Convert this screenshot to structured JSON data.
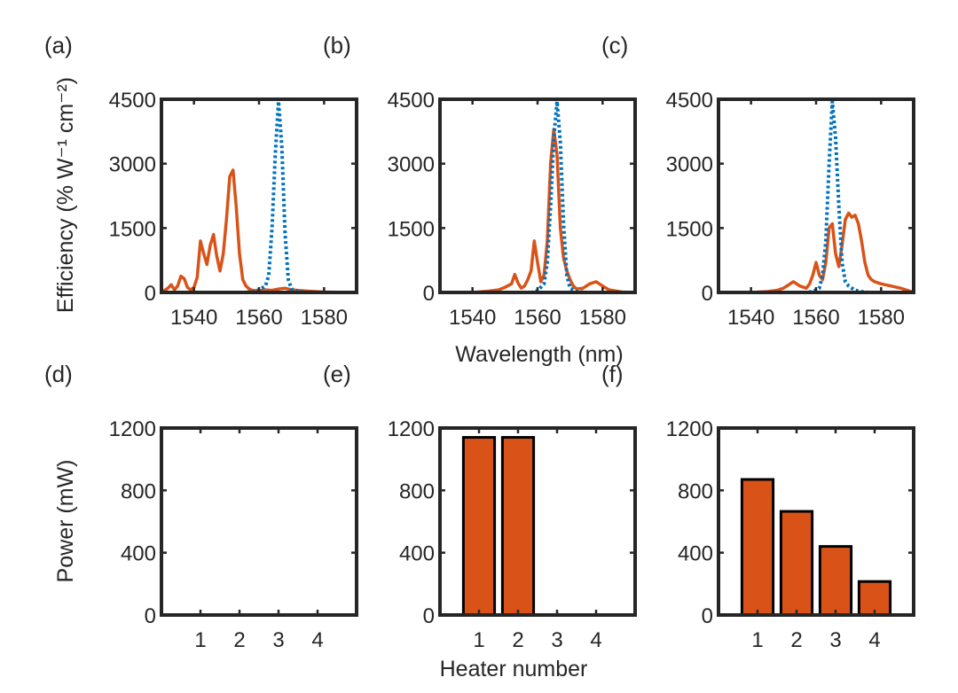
{
  "figure": {
    "top_ylabel": "Efficiency (% W⁻¹ cm⁻²)",
    "top_xlabel": "Wavelength (nm)",
    "bottom_ylabel": "Power (mW)",
    "bottom_xlabel": "Heater number"
  },
  "colors": {
    "orange": "#D95319",
    "blue": "#0072BD",
    "frame": "#262626"
  },
  "chart_data": [
    {
      "panel": "(a)",
      "type": "line",
      "xlim": [
        1530,
        1590
      ],
      "ylim": [
        0,
        4500
      ],
      "xticks": [
        1540,
        1560,
        1580
      ],
      "yticks": [
        0,
        1500,
        3000,
        4500
      ],
      "series": [
        {
          "style": "solid",
          "color": "#D95319",
          "x": [
            1530,
            1532,
            1533,
            1534,
            1535,
            1536,
            1537,
            1538,
            1539,
            1540,
            1541,
            1542,
            1543,
            1544,
            1545,
            1546,
            1547,
            1548,
            1549,
            1550,
            1551,
            1552,
            1553,
            1554,
            1555,
            1556,
            1557,
            1558,
            1560,
            1562,
            1564,
            1566,
            1568,
            1570,
            1575,
            1580,
            1590
          ],
          "y": [
            0,
            100,
            180,
            60,
            150,
            380,
            320,
            120,
            60,
            120,
            350,
            1200,
            900,
            650,
            1100,
            1350,
            850,
            500,
            900,
            1700,
            2700,
            2850,
            2000,
            900,
            300,
            150,
            80,
            50,
            40,
            60,
            50,
            80,
            100,
            60,
            30,
            10,
            0
          ]
        },
        {
          "style": "dotted",
          "color": "#0072BD",
          "x": [
            1530,
            1555,
            1558,
            1560,
            1562,
            1563,
            1564,
            1565,
            1566,
            1567,
            1568,
            1569,
            1570,
            1572,
            1575,
            1590
          ],
          "y": [
            0,
            0,
            10,
            60,
            150,
            400,
            1500,
            3200,
            4450,
            3400,
            1400,
            300,
            80,
            20,
            0,
            0
          ]
        }
      ]
    },
    {
      "panel": "(b)",
      "type": "line",
      "xlim": [
        1530,
        1590
      ],
      "ylim": [
        0,
        4500
      ],
      "xticks": [
        1540,
        1560,
        1580
      ],
      "yticks": [
        0,
        1500,
        3000,
        4500
      ],
      "series": [
        {
          "style": "solid",
          "color": "#D95319",
          "x": [
            1530,
            1540,
            1545,
            1548,
            1550,
            1552,
            1553,
            1554,
            1555,
            1556,
            1557,
            1558,
            1559,
            1560,
            1561,
            1562,
            1563,
            1564,
            1565,
            1566,
            1567,
            1568,
            1569,
            1570,
            1571,
            1572,
            1574,
            1576,
            1578,
            1580,
            1582,
            1586,
            1590
          ],
          "y": [
            0,
            0,
            30,
            60,
            120,
            200,
            420,
            220,
            100,
            150,
            300,
            500,
            1200,
            700,
            250,
            400,
            1200,
            3000,
            3800,
            3200,
            1500,
            800,
            500,
            300,
            150,
            80,
            100,
            200,
            250,
            150,
            60,
            10,
            0
          ]
        },
        {
          "style": "dotted",
          "color": "#0072BD",
          "x": [
            1530,
            1558,
            1560,
            1562,
            1563,
            1564,
            1565,
            1566,
            1567,
            1568,
            1569,
            1570,
            1572,
            1575,
            1590
          ],
          "y": [
            0,
            0,
            40,
            200,
            700,
            2000,
            3600,
            4450,
            3500,
            1600,
            400,
            100,
            20,
            0,
            0
          ]
        }
      ]
    },
    {
      "panel": "(c)",
      "type": "line",
      "xlim": [
        1530,
        1590
      ],
      "ylim": [
        0,
        4500
      ],
      "xticks": [
        1540,
        1560,
        1580
      ],
      "yticks": [
        0,
        1500,
        3000,
        4500
      ],
      "series": [
        {
          "style": "solid",
          "color": "#D95319",
          "x": [
            1530,
            1540,
            1545,
            1548,
            1550,
            1552,
            1553,
            1555,
            1557,
            1558,
            1559,
            1560,
            1561,
            1562,
            1563,
            1564,
            1565,
            1566,
            1567,
            1568,
            1569,
            1570,
            1571,
            1572,
            1573,
            1574,
            1575,
            1576,
            1577,
            1578,
            1580,
            1583,
            1586,
            1588,
            1590
          ],
          "y": [
            0,
            0,
            20,
            50,
            100,
            200,
            250,
            150,
            100,
            200,
            400,
            700,
            400,
            300,
            700,
            1500,
            1600,
            900,
            600,
            1100,
            1700,
            1850,
            1750,
            1800,
            1600,
            1200,
            700,
            400,
            300,
            250,
            200,
            150,
            100,
            50,
            0
          ]
        },
        {
          "style": "dotted",
          "color": "#0072BD",
          "x": [
            1530,
            1557,
            1559,
            1561,
            1562,
            1563,
            1564,
            1565,
            1566,
            1567,
            1568,
            1569,
            1570,
            1571,
            1572,
            1574,
            1576,
            1590
          ],
          "y": [
            0,
            0,
            20,
            100,
            400,
            1200,
            3000,
            4450,
            3600,
            2000,
            700,
            250,
            150,
            100,
            50,
            20,
            0,
            0
          ]
        }
      ]
    },
    {
      "panel": "(d)",
      "type": "bar",
      "categories": [
        "1",
        "2",
        "3",
        "4"
      ],
      "values": [
        0,
        0,
        0,
        0
      ],
      "xlim": [
        0,
        5
      ],
      "ylim": [
        0,
        1200
      ],
      "yticks": [
        0,
        400,
        800,
        1200
      ],
      "color": "#D95319"
    },
    {
      "panel": "(e)",
      "type": "bar",
      "categories": [
        "1",
        "2",
        "3",
        "4"
      ],
      "values": [
        1140,
        1140,
        0,
        0
      ],
      "xlim": [
        0,
        5
      ],
      "ylim": [
        0,
        1200
      ],
      "yticks": [
        0,
        400,
        800,
        1200
      ],
      "color": "#D95319"
    },
    {
      "panel": "(f)",
      "type": "bar",
      "categories": [
        "1",
        "2",
        "3",
        "4"
      ],
      "values": [
        870,
        665,
        440,
        215
      ],
      "xlim": [
        0,
        5
      ],
      "ylim": [
        0,
        1200
      ],
      "yticks": [
        0,
        400,
        800,
        1200
      ],
      "color": "#D95319"
    }
  ]
}
